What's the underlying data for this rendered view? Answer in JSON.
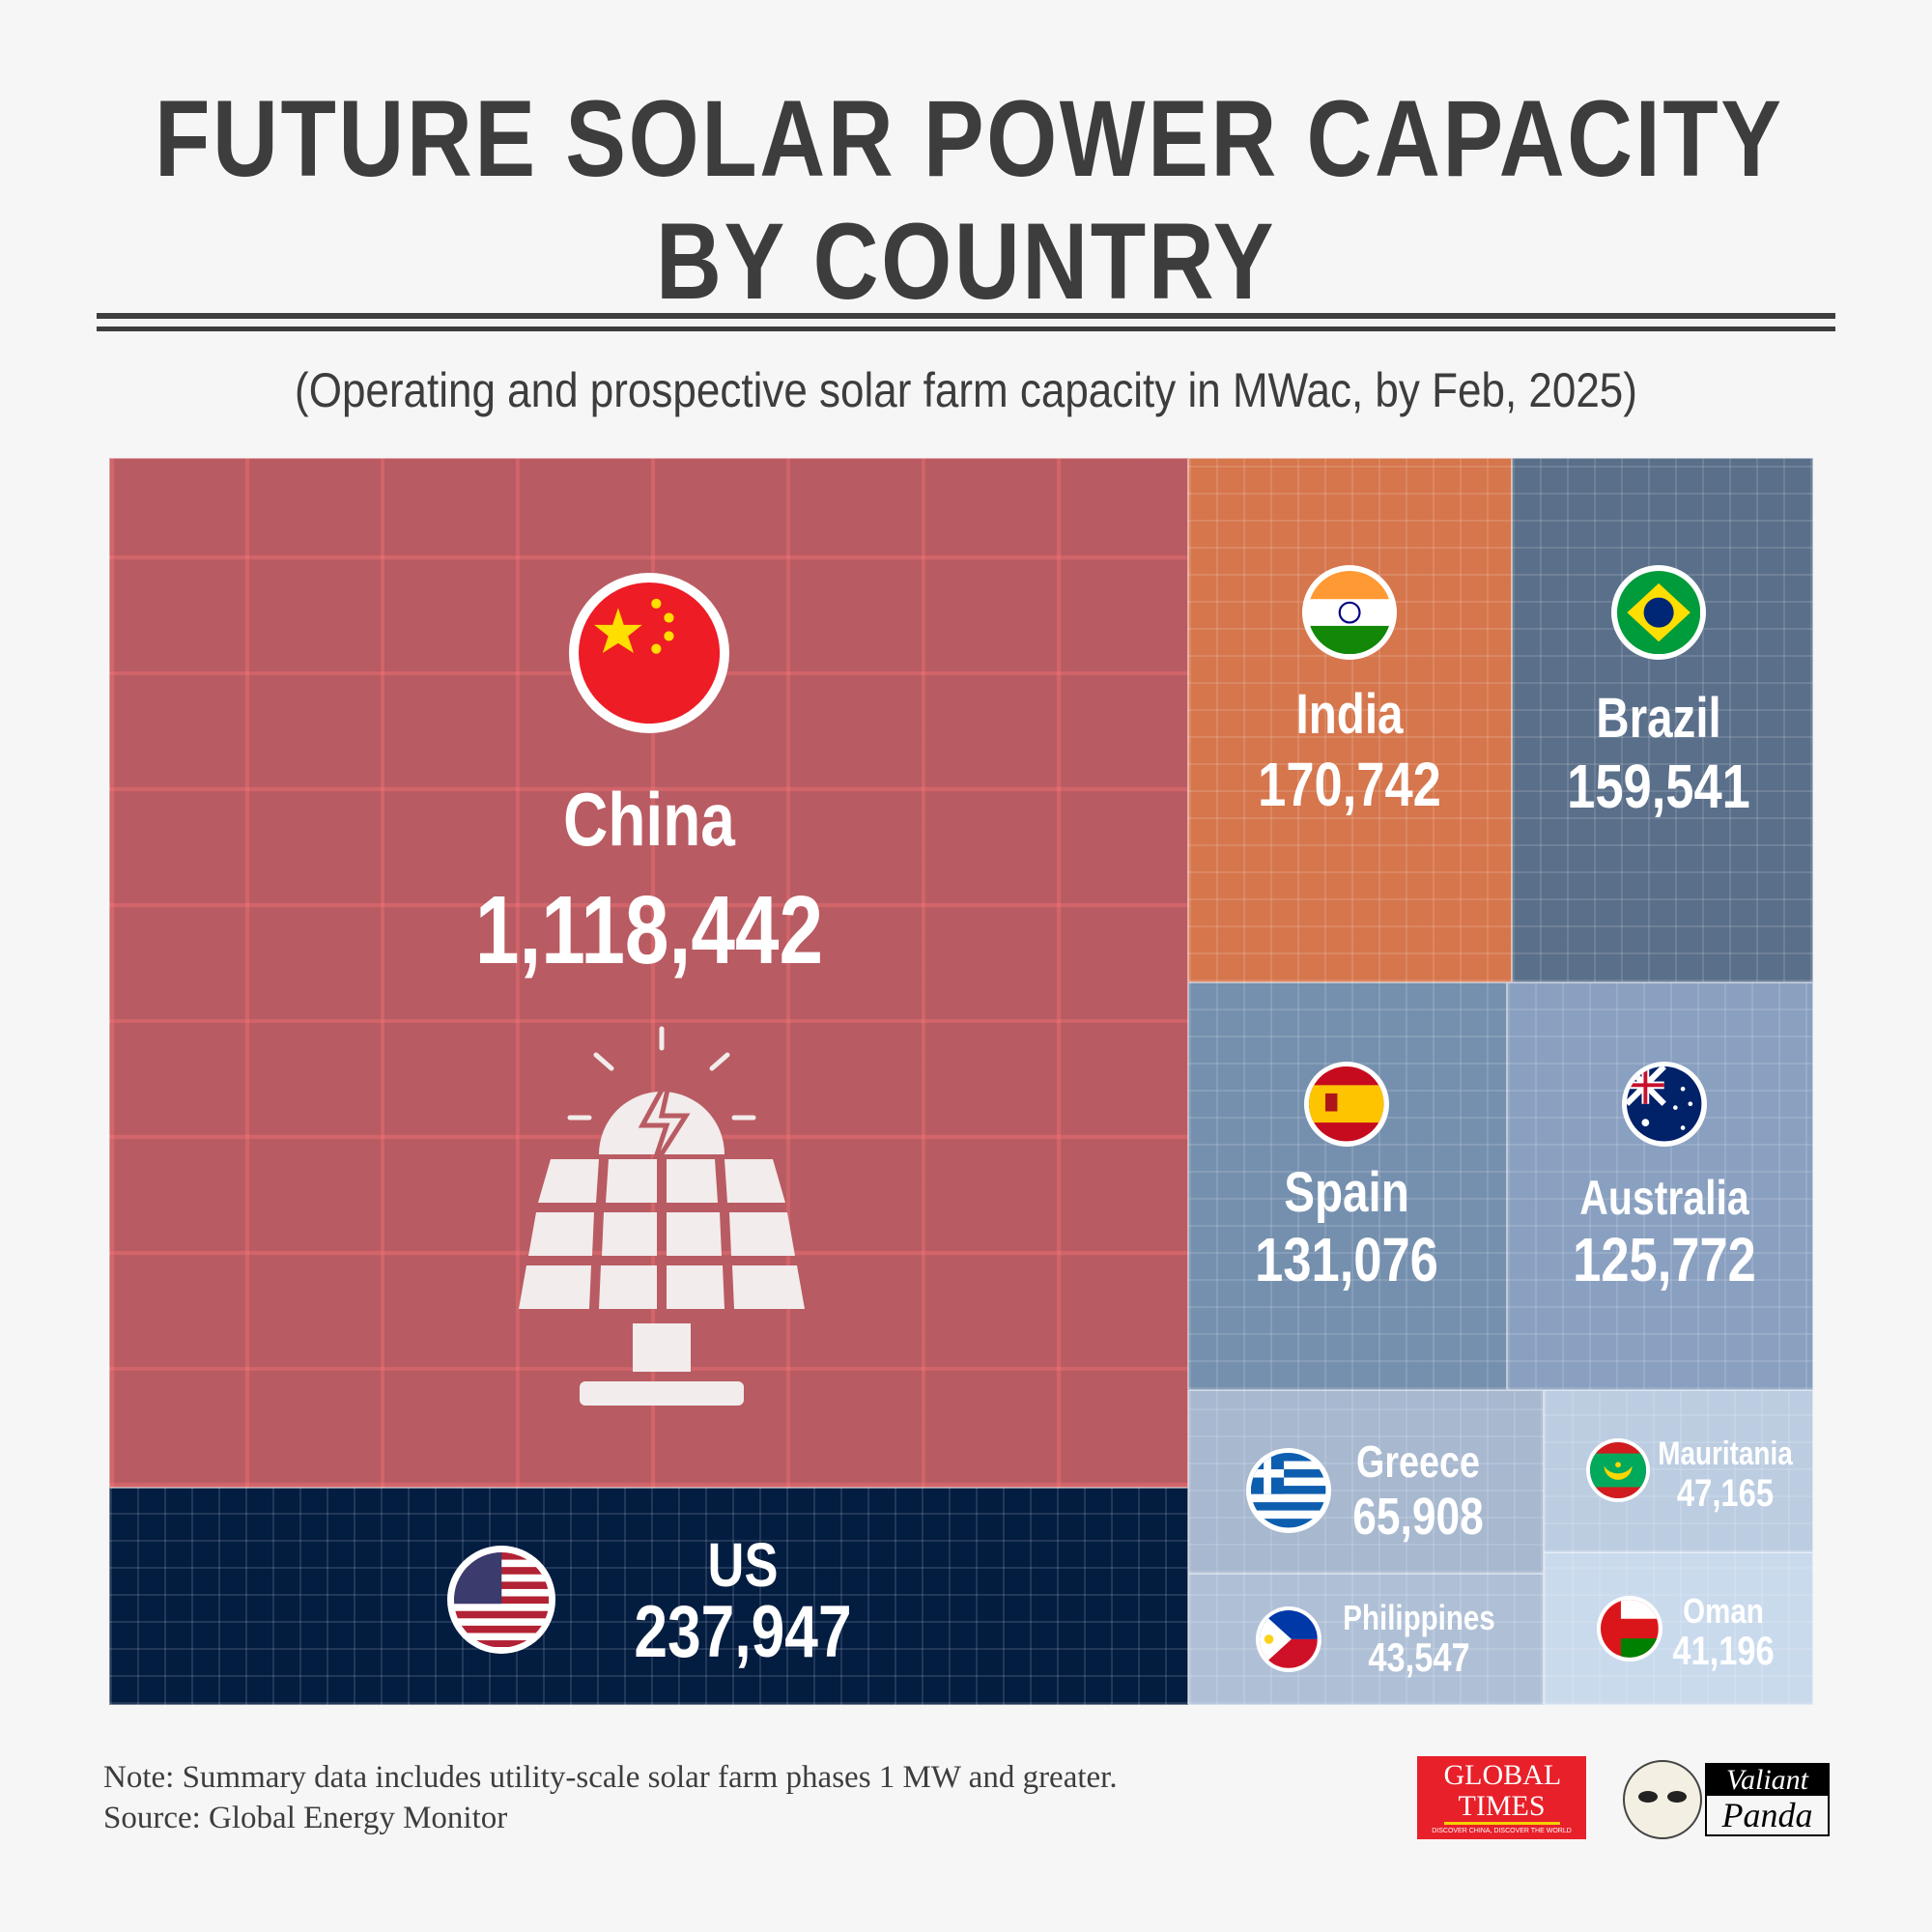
{
  "header": {
    "title_line1": "FUTURE SOLAR POWER CAPACITY",
    "title_line2": "BY COUNTRY",
    "subtitle": "(Operating and prospective solar farm capacity in MWac, by Feb, 2025)"
  },
  "chart_data": {
    "type": "treemap",
    "title": "FUTURE SOLAR POWER CAPACITY BY COUNTRY",
    "unit": "MWac",
    "items": [
      {
        "name": "China",
        "value": 1118442,
        "label": "1,118,442",
        "color": "#b95b62"
      },
      {
        "name": "US",
        "value": 237947,
        "label": "237,947",
        "color": "#031d41"
      },
      {
        "name": "India",
        "value": 170742,
        "label": "170,742",
        "color": "#d6764d"
      },
      {
        "name": "Brazil",
        "value": 159541,
        "label": "159,541",
        "color": "#5a6f8a"
      },
      {
        "name": "Spain",
        "value": 131076,
        "label": "131,076",
        "color": "#7590ae"
      },
      {
        "name": "Australia",
        "value": 125772,
        "label": "125,772",
        "color": "#8aa0c0"
      },
      {
        "name": "Greece",
        "value": 65908,
        "label": "65,908",
        "color": "#a7b8cf"
      },
      {
        "name": "Mauritania",
        "value": 47165,
        "label": "47,165",
        "color": "#bccde1"
      },
      {
        "name": "Philippines",
        "value": 43547,
        "label": "43,547",
        "color": "#afc0d6"
      },
      {
        "name": "Oman",
        "value": 41196,
        "label": "41,196",
        "color": "#cadaed"
      }
    ]
  },
  "footer": {
    "note": "Note: Summary data includes utility-scale solar farm phases 1 MW and greater.",
    "source": "Source: Global Energy Monitor",
    "logo1": "GLOBAL TIMES",
    "logo1_tagline": "DISCOVER CHINA, DISCOVER THE WORLD",
    "logo2_line1": "Valiant",
    "logo2_line2": "Panda"
  }
}
